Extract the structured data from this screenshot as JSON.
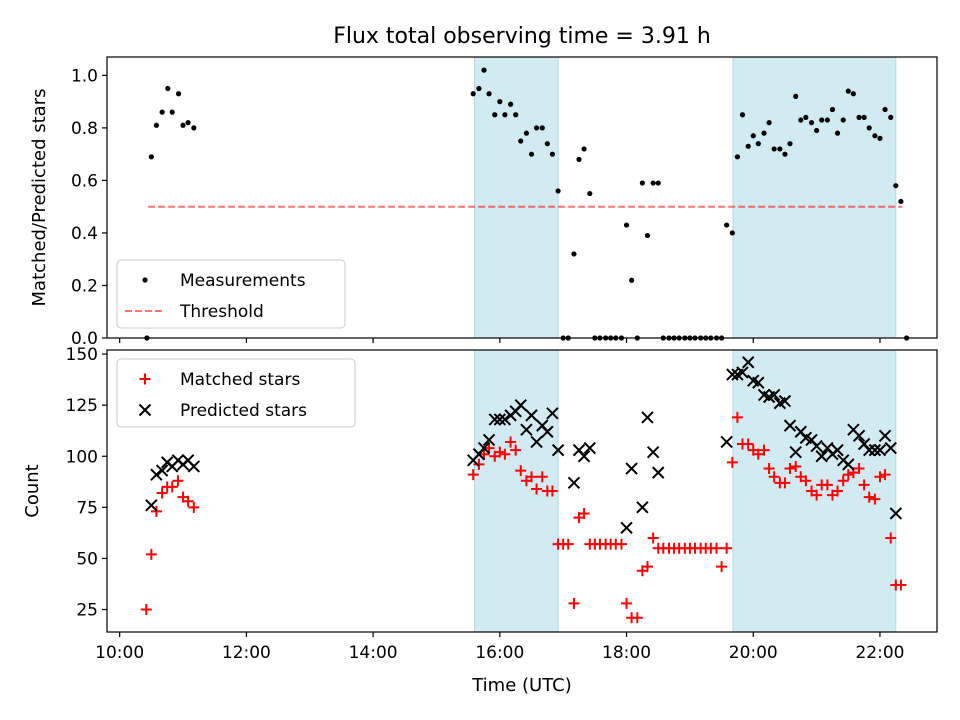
{
  "title": "Flux total observing time = 3.91 h",
  "colors": {
    "shade": "#add8e6",
    "measurement": "#000000",
    "threshold": "#ff0000",
    "matched": "#ff0000",
    "predicted": "#000000"
  },
  "chart_data": [
    {
      "type": "scatter",
      "ylabel": "Matched/Predicted stars",
      "xlim": [
        9.8,
        22.9
      ],
      "ylim": [
        0,
        1.07
      ],
      "yticks": [
        0.0,
        0.2,
        0.4,
        0.6,
        0.8,
        1.0
      ],
      "ytick_labels": [
        "0.0",
        "0.2",
        "0.4",
        "0.6",
        "0.8",
        "1.0"
      ],
      "shaded_intervals": [
        [
          15.6,
          16.92
        ],
        [
          19.68,
          22.25
        ]
      ],
      "legend": {
        "placement": "lower-left",
        "entries": [
          "Measurements",
          "Threshold"
        ]
      },
      "threshold": {
        "name": "Threshold",
        "value": 0.5,
        "x_range": [
          10.45,
          22.35
        ],
        "style": "dashed"
      },
      "series": [
        {
          "name": "Measurements",
          "marker": "dot",
          "points": [
            [
              10.43,
              0.0
            ],
            [
              10.5,
              0.69
            ],
            [
              10.58,
              0.81
            ],
            [
              10.67,
              0.86
            ],
            [
              10.76,
              0.95
            ],
            [
              10.83,
              0.86
            ],
            [
              10.93,
              0.93
            ],
            [
              11.0,
              0.81
            ],
            [
              11.08,
              0.82
            ],
            [
              11.17,
              0.8
            ],
            [
              15.58,
              0.93
            ],
            [
              15.67,
              0.95
            ],
            [
              15.75,
              1.02
            ],
            [
              15.83,
              0.93
            ],
            [
              15.92,
              0.85
            ],
            [
              16.0,
              0.9
            ],
            [
              16.08,
              0.85
            ],
            [
              16.17,
              0.89
            ],
            [
              16.25,
              0.85
            ],
            [
              16.33,
              0.75
            ],
            [
              16.42,
              0.78
            ],
            [
              16.5,
              0.7
            ],
            [
              16.58,
              0.8
            ],
            [
              16.67,
              0.8
            ],
            [
              16.75,
              0.74
            ],
            [
              16.83,
              0.7
            ],
            [
              16.92,
              0.56
            ],
            [
              17.0,
              0.0
            ],
            [
              17.08,
              0.0
            ],
            [
              17.17,
              0.32
            ],
            [
              17.25,
              0.68
            ],
            [
              17.33,
              0.72
            ],
            [
              17.42,
              0.55
            ],
            [
              17.5,
              0.0
            ],
            [
              17.58,
              0.0
            ],
            [
              17.67,
              0.0
            ],
            [
              17.75,
              0.0
            ],
            [
              17.83,
              0.0
            ],
            [
              17.92,
              0.0
            ],
            [
              18.0,
              0.43
            ],
            [
              18.08,
              0.22
            ],
            [
              18.17,
              0.0
            ],
            [
              18.25,
              0.59
            ],
            [
              18.33,
              0.39
            ],
            [
              18.42,
              0.59
            ],
            [
              18.5,
              0.59
            ],
            [
              18.58,
              0.0
            ],
            [
              18.67,
              0.0
            ],
            [
              18.75,
              0.0
            ],
            [
              18.83,
              0.0
            ],
            [
              18.92,
              0.0
            ],
            [
              19.0,
              0.0
            ],
            [
              19.08,
              0.0
            ],
            [
              19.17,
              0.0
            ],
            [
              19.25,
              0.0
            ],
            [
              19.33,
              0.0
            ],
            [
              19.42,
              0.0
            ],
            [
              19.5,
              0.0
            ],
            [
              19.58,
              0.43
            ],
            [
              19.67,
              0.4
            ],
            [
              19.75,
              0.69
            ],
            [
              19.83,
              0.85
            ],
            [
              19.92,
              0.73
            ],
            [
              20.0,
              0.77
            ],
            [
              20.08,
              0.74
            ],
            [
              20.17,
              0.78
            ],
            [
              20.25,
              0.82
            ],
            [
              20.33,
              0.72
            ],
            [
              20.42,
              0.72
            ],
            [
              20.5,
              0.7
            ],
            [
              20.58,
              0.74
            ],
            [
              20.67,
              0.92
            ],
            [
              20.75,
              0.83
            ],
            [
              20.83,
              0.84
            ],
            [
              20.92,
              0.82
            ],
            [
              21.0,
              0.79
            ],
            [
              21.08,
              0.83
            ],
            [
              21.17,
              0.83
            ],
            [
              21.25,
              0.87
            ],
            [
              21.33,
              0.78
            ],
            [
              21.42,
              0.83
            ],
            [
              21.5,
              0.94
            ],
            [
              21.58,
              0.93
            ],
            [
              21.67,
              0.84
            ],
            [
              21.75,
              0.84
            ],
            [
              21.83,
              0.8
            ],
            [
              21.92,
              0.77
            ],
            [
              22.0,
              0.76
            ],
            [
              22.08,
              0.87
            ],
            [
              22.17,
              0.84
            ],
            [
              22.25,
              0.58
            ],
            [
              22.33,
              0.52
            ],
            [
              22.42,
              0.0
            ]
          ]
        }
      ]
    },
    {
      "type": "scatter",
      "xlabel": "Time (UTC)",
      "ylabel": "Count",
      "xlim": [
        9.8,
        22.9
      ],
      "ylim": [
        14,
        152
      ],
      "xticks": [
        10,
        12,
        14,
        16,
        18,
        20,
        22
      ],
      "xtick_labels": [
        "10:00",
        "12:00",
        "14:00",
        "16:00",
        "18:00",
        "20:00",
        "22:00"
      ],
      "yticks": [
        25,
        50,
        75,
        100,
        125,
        150
      ],
      "ytick_labels": [
        "25",
        "50",
        "75",
        "100",
        "125",
        "150"
      ],
      "shaded_intervals": [
        [
          15.6,
          16.92
        ],
        [
          19.68,
          22.25
        ]
      ],
      "legend": {
        "placement": "top-left",
        "entries": [
          "Matched stars",
          "Predicted stars"
        ]
      },
      "series": [
        {
          "name": "Matched stars",
          "marker": "plus",
          "points": [
            [
              10.42,
              25
            ],
            [
              10.5,
              52
            ],
            [
              10.58,
              73
            ],
            [
              10.67,
              82
            ],
            [
              10.75,
              85
            ],
            [
              10.83,
              85
            ],
            [
              10.92,
              88
            ],
            [
              11.0,
              80
            ],
            [
              11.08,
              78
            ],
            [
              11.17,
              75
            ],
            [
              15.58,
              91
            ],
            [
              15.67,
              96
            ],
            [
              15.75,
              101
            ],
            [
              15.83,
              104
            ],
            [
              15.92,
              100
            ],
            [
              16.0,
              102
            ],
            [
              16.08,
              101
            ],
            [
              16.17,
              107
            ],
            [
              16.25,
              103
            ],
            [
              16.33,
              93
            ],
            [
              16.42,
              88
            ],
            [
              16.5,
              90
            ],
            [
              16.58,
              84
            ],
            [
              16.67,
              90
            ],
            [
              16.75,
              83
            ],
            [
              16.83,
              83
            ],
            [
              16.92,
              57
            ],
            [
              17.0,
              57
            ],
            [
              17.08,
              57
            ],
            [
              17.17,
              28
            ],
            [
              17.25,
              70
            ],
            [
              17.33,
              72
            ],
            [
              17.42,
              57
            ],
            [
              17.5,
              57
            ],
            [
              17.58,
              57
            ],
            [
              17.67,
              57
            ],
            [
              17.75,
              57
            ],
            [
              17.83,
              57
            ],
            [
              17.92,
              57
            ],
            [
              18.0,
              28
            ],
            [
              18.08,
              21
            ],
            [
              18.17,
              21
            ],
            [
              18.25,
              44
            ],
            [
              18.33,
              46
            ],
            [
              18.42,
              60
            ],
            [
              18.5,
              55
            ],
            [
              18.58,
              55
            ],
            [
              18.67,
              55
            ],
            [
              18.75,
              55
            ],
            [
              18.83,
              55
            ],
            [
              18.92,
              55
            ],
            [
              19.0,
              55
            ],
            [
              19.08,
              55
            ],
            [
              19.17,
              55
            ],
            [
              19.25,
              55
            ],
            [
              19.33,
              55
            ],
            [
              19.42,
              55
            ],
            [
              19.5,
              46
            ],
            [
              19.58,
              55
            ],
            [
              19.67,
              97
            ],
            [
              19.75,
              119
            ],
            [
              19.83,
              106
            ],
            [
              19.92,
              106
            ],
            [
              20.0,
              103
            ],
            [
              20.08,
              101
            ],
            [
              20.17,
              103
            ],
            [
              20.25,
              94
            ],
            [
              20.33,
              90
            ],
            [
              20.42,
              87
            ],
            [
              20.5,
              87
            ],
            [
              20.58,
              94
            ],
            [
              20.67,
              95
            ],
            [
              20.75,
              90
            ],
            [
              20.83,
              88
            ],
            [
              20.92,
              83
            ],
            [
              21.0,
              81
            ],
            [
              21.08,
              86
            ],
            [
              21.17,
              86
            ],
            [
              21.25,
              81
            ],
            [
              21.33,
              83
            ],
            [
              21.42,
              88
            ],
            [
              21.5,
              91
            ],
            [
              21.58,
              92
            ],
            [
              21.67,
              94
            ],
            [
              21.75,
              86
            ],
            [
              21.83,
              80
            ],
            [
              21.92,
              79
            ],
            [
              22.0,
              90
            ],
            [
              22.08,
              91
            ],
            [
              22.17,
              60
            ],
            [
              22.25,
              37
            ],
            [
              22.33,
              37
            ]
          ]
        },
        {
          "name": "Predicted stars",
          "marker": "x",
          "points": [
            [
              10.5,
              76
            ],
            [
              10.58,
              91
            ],
            [
              10.67,
              93
            ],
            [
              10.75,
              97
            ],
            [
              10.83,
              95
            ],
            [
              10.92,
              98
            ],
            [
              11.0,
              96
            ],
            [
              11.08,
              98
            ],
            [
              11.17,
              95
            ],
            [
              15.58,
              98
            ],
            [
              15.67,
              101
            ],
            [
              15.75,
              104
            ],
            [
              15.83,
              108
            ],
            [
              15.92,
              118
            ],
            [
              16.0,
              118
            ],
            [
              16.08,
              118
            ],
            [
              16.17,
              120
            ],
            [
              16.25,
              122
            ],
            [
              16.33,
              125
            ],
            [
              16.42,
              113
            ],
            [
              16.5,
              120
            ],
            [
              16.58,
              107
            ],
            [
              16.67,
              115
            ],
            [
              16.75,
              112
            ],
            [
              16.83,
              121
            ],
            [
              16.92,
              103
            ],
            [
              17.17,
              87
            ],
            [
              17.25,
              103
            ],
            [
              17.33,
              100
            ],
            [
              17.42,
              104
            ],
            [
              18.0,
              65
            ],
            [
              18.08,
              94
            ],
            [
              18.25,
              75
            ],
            [
              18.33,
              119
            ],
            [
              18.42,
              102
            ],
            [
              18.5,
              92
            ],
            [
              19.58,
              107
            ],
            [
              19.67,
              140
            ],
            [
              19.75,
              140
            ],
            [
              19.83,
              141
            ],
            [
              19.92,
              146
            ],
            [
              20.0,
              137
            ],
            [
              20.08,
              136
            ],
            [
              20.17,
              130
            ],
            [
              20.25,
              129
            ],
            [
              20.33,
              130
            ],
            [
              20.42,
              126
            ],
            [
              20.5,
              127
            ],
            [
              20.58,
              115
            ],
            [
              20.67,
              102
            ],
            [
              20.75,
              112
            ],
            [
              20.83,
              109
            ],
            [
              20.92,
              108
            ],
            [
              21.0,
              105
            ],
            [
              21.08,
              100
            ],
            [
              21.17,
              104
            ],
            [
              21.25,
              101
            ],
            [
              21.33,
              103
            ],
            [
              21.42,
              98
            ],
            [
              21.5,
              96
            ],
            [
              21.58,
              113
            ],
            [
              21.67,
              110
            ],
            [
              21.75,
              106
            ],
            [
              21.83,
              103
            ],
            [
              21.92,
              103
            ],
            [
              22.0,
              103
            ],
            [
              22.08,
              110
            ],
            [
              22.17,
              104
            ],
            [
              22.25,
              72
            ]
          ]
        }
      ]
    }
  ]
}
